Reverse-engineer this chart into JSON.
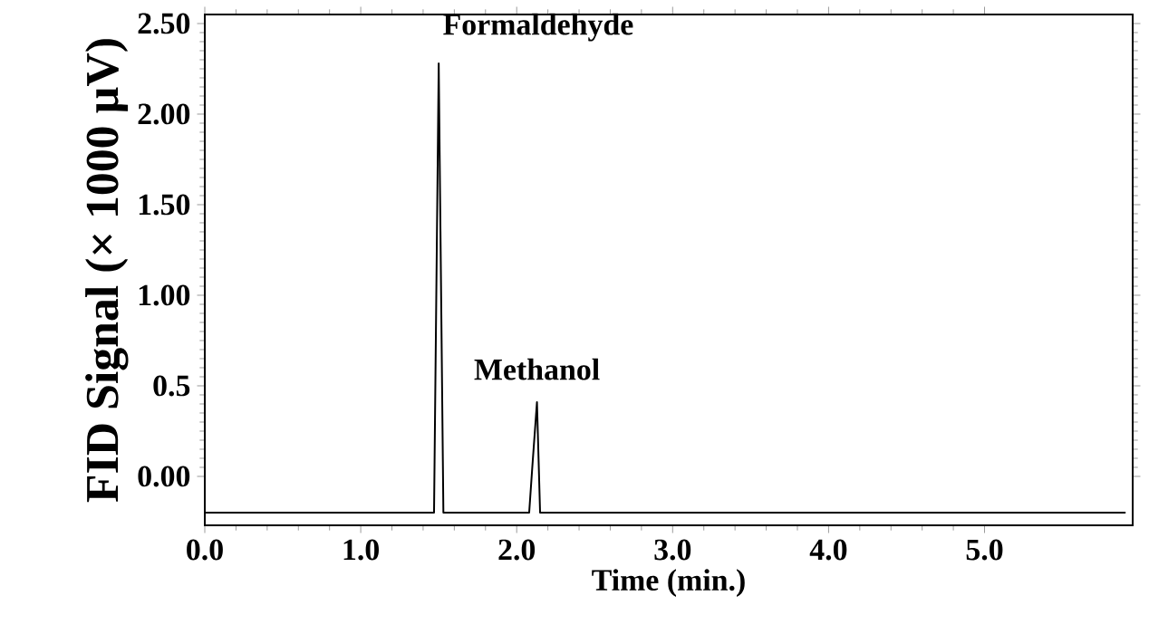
{
  "chart_data": {
    "type": "line",
    "xlabel": "Time (min.)",
    "ylabel": "FID Signal (× 1000 µV)",
    "x": [
      0.0,
      0.6,
      1.2,
      1.47,
      1.5,
      1.53,
      1.56,
      2.08,
      2.1,
      2.13,
      2.15,
      2.17,
      2.6,
      3.5,
      4.5,
      5.5,
      5.9
    ],
    "series": [
      {
        "color": "#000000",
        "values": [
          -0.2,
          -0.2,
          -0.2,
          -0.2,
          2.28,
          -0.2,
          -0.2,
          -0.2,
          0.05,
          0.41,
          -0.2,
          -0.2,
          -0.2,
          -0.2,
          -0.2,
          -0.2,
          -0.2
        ]
      }
    ],
    "xlim": [
      0,
      5.95
    ],
    "ylim": [
      -0.27,
      2.55
    ],
    "xticks": [
      {
        "value": 0,
        "label": "0.0"
      },
      {
        "value": 1,
        "label": "1.0"
      },
      {
        "value": 2,
        "label": "2.0"
      },
      {
        "value": 3,
        "label": "3.0"
      },
      {
        "value": 4,
        "label": "4.0"
      },
      {
        "value": 5,
        "label": "5.0"
      }
    ],
    "yticks": [
      {
        "value": 0,
        "label": "0.00"
      },
      0.5,
      {
        "value": 1,
        "label": "1.00"
      },
      {
        "value": 1.5,
        "label": "1.50"
      },
      {
        "value": 2,
        "label": "2.00"
      },
      {
        "value": 2.5,
        "label": "2.50"
      }
    ],
    "annotations": [
      {
        "text": "Formaldehyde",
        "x": 1.5,
        "y": 2.28
      },
      {
        "text": "Methanol",
        "x": 2.13,
        "y": 0.41
      }
    ],
    "grid": false,
    "line_style": "solid",
    "marker": "none"
  }
}
